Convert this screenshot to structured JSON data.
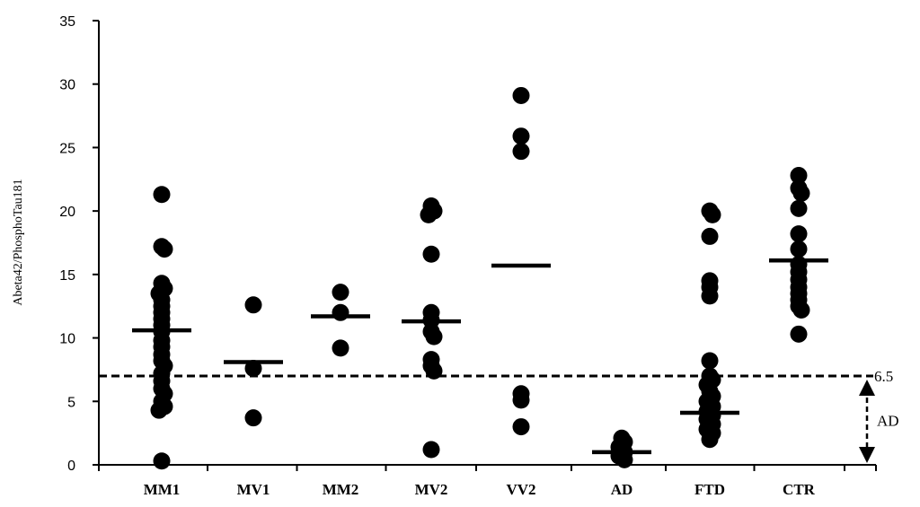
{
  "chart_data": {
    "type": "scatter",
    "ylabel": "Abeta42/PhosphoTau181",
    "ylim": [
      0,
      35
    ],
    "yticks": [
      0,
      5,
      10,
      15,
      20,
      25,
      30,
      35
    ],
    "categories": [
      "MM1",
      "MV1",
      "MM2",
      "MV2",
      "VV2",
      "AD",
      "FTD",
      "CTR"
    ],
    "series": [
      {
        "category": "MM1",
        "points": [
          21.3,
          17.2,
          17.0,
          14.3,
          13.9,
          13.5,
          13.0,
          12.5,
          12.0,
          11.5,
          11.0,
          10.5,
          9.8,
          9.3,
          8.7,
          8.2,
          7.8,
          7.2,
          6.6,
          6.0,
          5.6,
          5.0,
          4.6,
          4.3,
          0.3
        ],
        "median": 10.6
      },
      {
        "category": "MV1",
        "points": [
          12.6,
          7.6,
          3.7
        ],
        "median": 8.1
      },
      {
        "category": "MM2",
        "points": [
          13.6,
          12.0,
          9.2
        ],
        "median": 11.7
      },
      {
        "category": "MV2",
        "points": [
          20.4,
          20.0,
          19.7,
          16.6,
          12.0,
          11.4,
          10.5,
          10.1,
          8.3,
          7.8,
          7.4,
          1.2
        ],
        "median": 11.3
      },
      {
        "category": "VV2",
        "points": [
          29.1,
          25.9,
          24.7,
          5.6,
          5.1,
          3.0
        ],
        "median": 15.7
      },
      {
        "category": "AD",
        "points": [
          2.1,
          1.8,
          1.4,
          1.0,
          0.7,
          0.4
        ],
        "median": 1.0
      },
      {
        "category": "FTD",
        "points": [
          20.0,
          19.7,
          18.0,
          14.5,
          14.0,
          13.3,
          8.2,
          7.0,
          6.7,
          6.3,
          5.8,
          5.4,
          5.0,
          4.6,
          4.2,
          3.9,
          3.6,
          3.2,
          2.8,
          2.5,
          2.0
        ],
        "median": 4.1
      },
      {
        "category": "CTR",
        "points": [
          22.8,
          21.8,
          21.4,
          20.2,
          18.2,
          17.0,
          15.8,
          15.2,
          14.6,
          14.0,
          13.5,
          13.0,
          12.5,
          12.2,
          10.3
        ],
        "median": 16.1
      }
    ],
    "cutoff": {
      "value": 7.0,
      "label": "6.5"
    },
    "annotation_label": "AD",
    "grid": false,
    "legend": "none"
  }
}
